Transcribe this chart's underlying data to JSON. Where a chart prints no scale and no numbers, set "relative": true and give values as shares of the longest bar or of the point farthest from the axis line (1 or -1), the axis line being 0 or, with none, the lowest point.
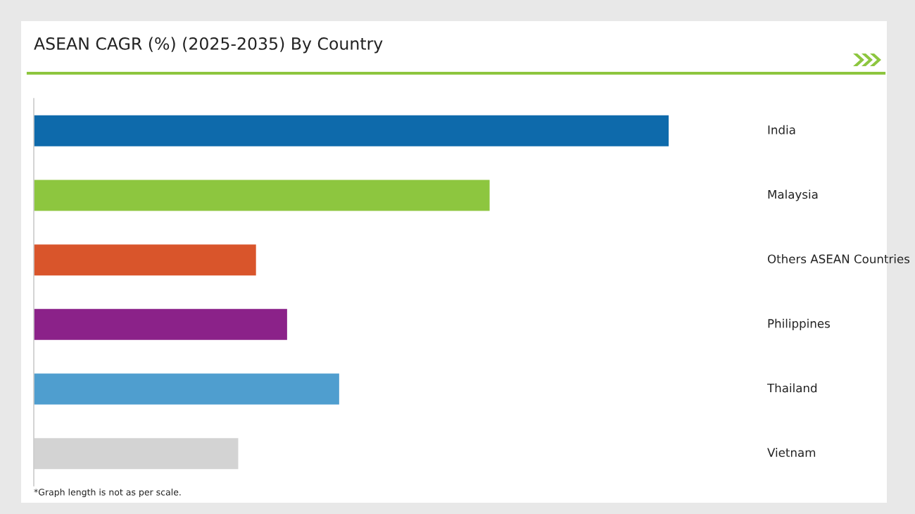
{
  "chart_data": {
    "type": "bar",
    "orientation": "horizontal",
    "relative": true,
    "title": "ASEAN CAGR (%) (2025-2035) By Country",
    "categories": [
      "India",
      "Malaysia",
      "Others ASEAN Countries",
      "Philippines",
      "Thailand",
      "Vietnam"
    ],
    "values": [
      1,
      0.718,
      0.35,
      0.399,
      0.481,
      0.322
    ],
    "colors": [
      "#0e6aab",
      "#8dc63f",
      "#d9552b",
      "#8b2289",
      "#4f9ecf",
      "#d3d3d3"
    ],
    "annotations": [
      "*Graph length is not as per scale."
    ],
    "legend": false
  }
}
